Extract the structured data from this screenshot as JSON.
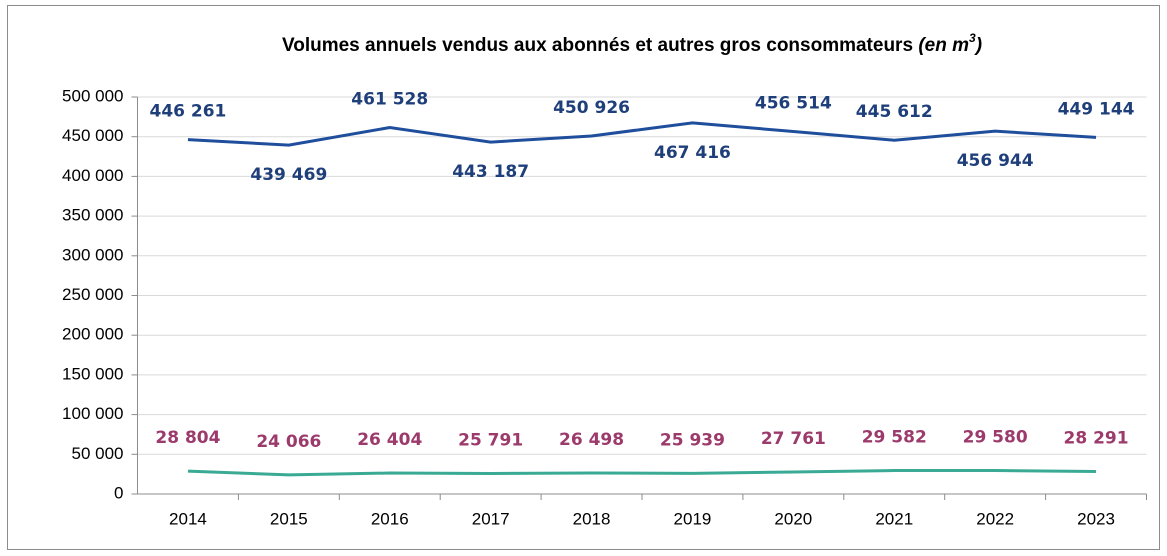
{
  "chart_data": {
    "type": "line",
    "title": "Volumes annuels vendus aux abonnés et autres gros consommateurs",
    "title_unit": {
      "open": "(en m",
      "sup": "3",
      "close": ")"
    },
    "categories": [
      "2014",
      "2015",
      "2016",
      "2017",
      "2018",
      "2019",
      "2020",
      "2021",
      "2022",
      "2023"
    ],
    "series": [
      {
        "color": "#1f4e9c",
        "label_color": "#1f3f7a",
        "values": [
          446261,
          439469,
          461528,
          443187,
          450926,
          467416,
          456514,
          445612,
          456944,
          449144
        ],
        "value_labels": [
          "446 261",
          "439 469",
          "461 528",
          "443 187",
          "450 926",
          "467 416",
          "456 514",
          "445 612",
          "456 944",
          "449 144"
        ]
      },
      {
        "color": "#3aaa94",
        "label_color": "#9b3a6b",
        "values": [
          28804,
          24066,
          26404,
          25791,
          26498,
          25939,
          27761,
          29582,
          29580,
          28291
        ],
        "value_labels": [
          "28 804",
          "24 066",
          "26 404",
          "25 791",
          "26 498",
          "25 939",
          "27 761",
          "29 582",
          "29 580",
          "28 291"
        ]
      }
    ],
    "ylim": [
      0,
      500000
    ],
    "yticks": [
      0,
      {
        "value": 50000,
        "label": "50 000"
      },
      {
        "value": 100000,
        "label": "100 000"
      },
      {
        "value": 150000,
        "label": "150 000"
      },
      {
        "value": 200000,
        "label": "200 000"
      },
      {
        "value": 250000,
        "label": "250 000"
      },
      {
        "value": 300000,
        "label": "300 000"
      },
      {
        "value": 350000,
        "label": "350 000"
      },
      {
        "value": 400000,
        "label": "400 000"
      },
      {
        "value": 450000,
        "label": "450 000"
      },
      {
        "value": 500000,
        "label": "500 000"
      }
    ],
    "grid": true
  }
}
